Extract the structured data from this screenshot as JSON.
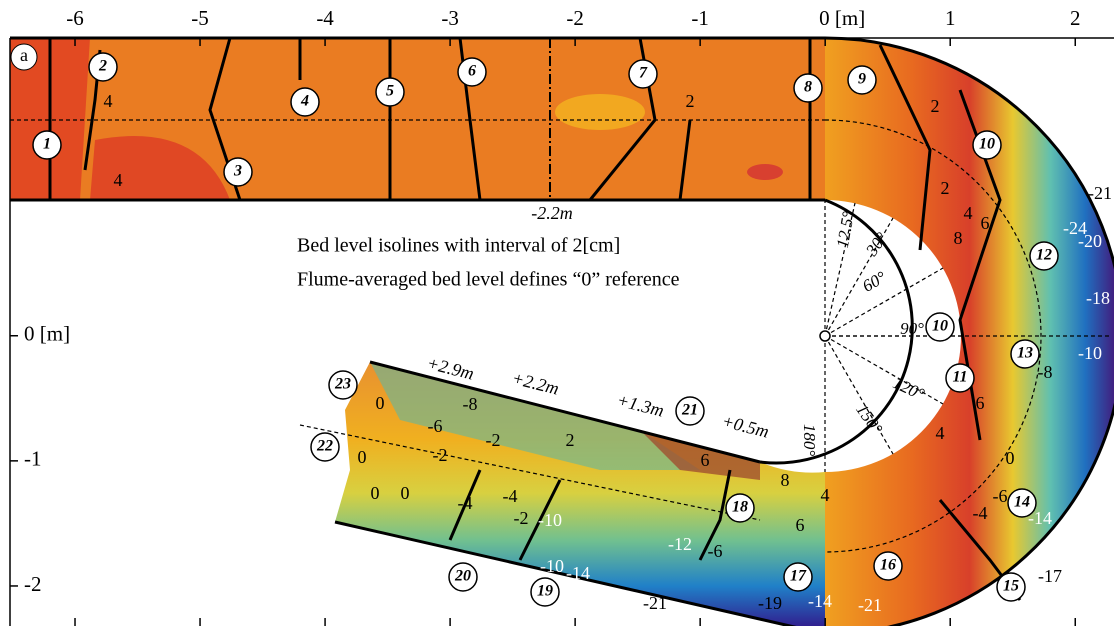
{
  "chart_data": {
    "type": "contour",
    "panel_label": "a",
    "notes": [
      "Bed level isolines with interval of 2[cm]",
      "Flume-averaged bed level defines “0” reference"
    ],
    "xlim": [
      -6.52,
      2.31
    ],
    "ylim": [
      -2.32,
      2.38
    ],
    "xticks": [
      -6,
      -5,
      -4,
      -3,
      -2,
      -1,
      {
        "value": 0,
        "label": "0 [m]"
      },
      1,
      2
    ],
    "yticks": [
      {
        "value": 0,
        "label": "0 [m]"
      },
      -1,
      -2
    ],
    "cross_sections": [
      "1",
      "2",
      "3",
      "4",
      "5",
      "6",
      "7",
      "8",
      "9",
      "10",
      "12",
      "10",
      "13",
      "11",
      "14",
      "15",
      "16",
      "17",
      "18",
      "19",
      "20",
      "21",
      "22",
      "23"
    ],
    "distance_labels": [
      "-2.2m",
      "+2.9m",
      "+2.2m",
      "+1.3m",
      "+0.5m"
    ],
    "angle_labels": [
      "12.5°",
      "30°",
      "60°",
      "90°",
      "120°",
      "150°",
      "180°"
    ],
    "contour_labels": [
      4,
      4,
      2,
      2,
      2,
      4,
      8,
      6,
      -24,
      -20,
      -18,
      -10,
      -21,
      -17,
      -14,
      -21,
      -19,
      -21,
      -14,
      -12,
      -14,
      -10,
      -6,
      -4,
      -2,
      0,
      0,
      -4,
      0,
      -6,
      -2,
      -8,
      0,
      -2,
      2,
      6,
      8,
      6,
      4,
      4,
      6,
      -6,
      -4,
      0,
      -8,
      -10
    ]
  }
}
